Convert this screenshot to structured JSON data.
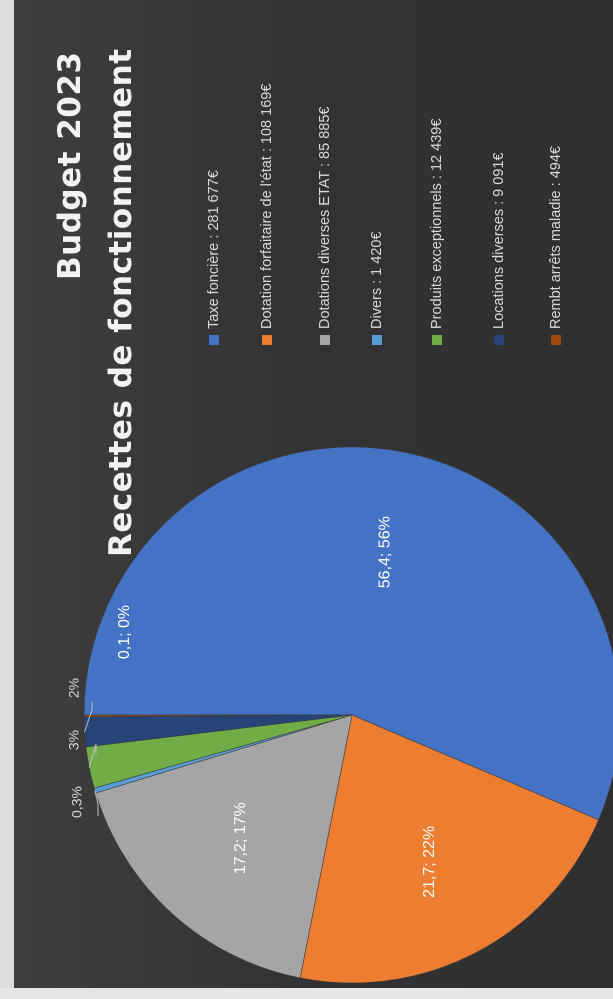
{
  "chart_data": {
    "type": "pie",
    "title": "Budget 2023",
    "subtitle": "Recettes de fonctionnement",
    "slices": [
      {
        "name": "Taxe foncière : 281 677€",
        "value": 56.4,
        "percent": "56%",
        "label": "56,4; 56%",
        "color": "#4472c4"
      },
      {
        "name": "Dotation forfaitaire de l'état : 108 169€",
        "value": 21.7,
        "percent": "22%",
        "label": "21,7; 22%",
        "color": "#ed7d31"
      },
      {
        "name": "Dotations diverses ETAT : 85 885€",
        "value": 17.2,
        "percent": "17%",
        "label": "17,2; 17%",
        "color": "#a5a5a5"
      },
      {
        "name": "Divers : 1 420€",
        "value": 0.3,
        "percent": "0,3%",
        "label": "0,3%",
        "color": "#5b9bd5"
      },
      {
        "name": "Produits exceptionnels : 12 439€",
        "value": 2.5,
        "percent": "3%",
        "label": "3%",
        "color": "#70ad47"
      },
      {
        "name": "Locations diverses : 9 091€",
        "value": 1.8,
        "percent": "2%",
        "label": "2%",
        "color": "#264478"
      },
      {
        "name": "Rembt arrêts maladie : 494€",
        "value": 0.1,
        "percent": "0%",
        "label": "0,1; 0%",
        "color": "#9e480e"
      }
    ],
    "legend_position": "right",
    "orientation": "rotated 90° counter-clockwise"
  }
}
